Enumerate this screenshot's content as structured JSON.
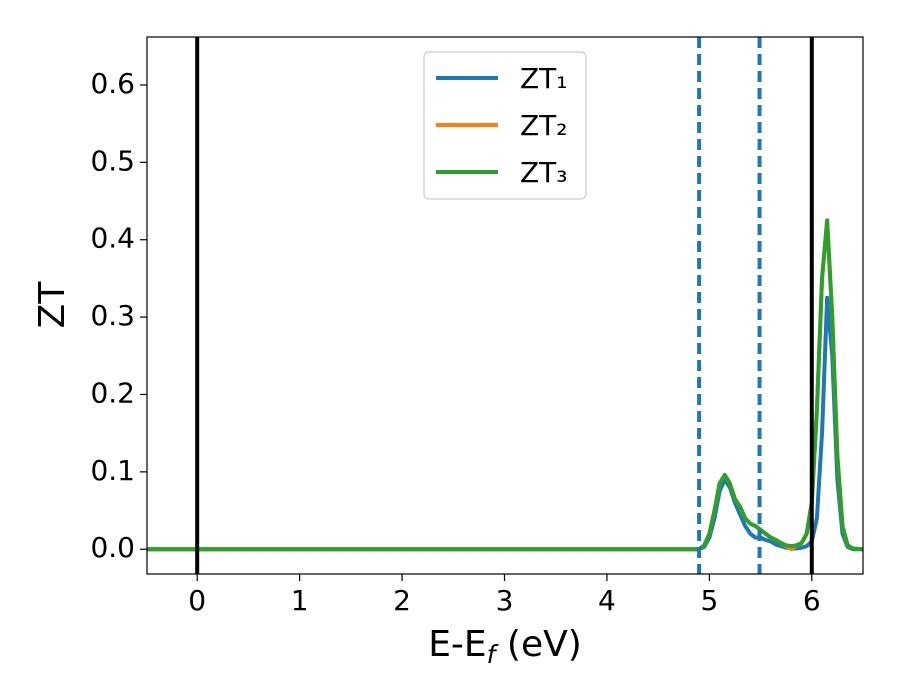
{
  "chart_data": {
    "type": "line",
    "xlabel": [
      "E-E",
      "f",
      " (eV)"
    ],
    "ylabel": "ZT",
    "xlim": [
      -0.49,
      6.5
    ],
    "ylim": [
      -0.032,
      0.662
    ],
    "xticks": [
      0,
      1,
      2,
      3,
      4,
      5,
      6
    ],
    "yticks": [
      {
        "value": 0,
        "label": "0.0"
      },
      0.1,
      0.2,
      0.3,
      0.4,
      0.5,
      0.6
    ],
    "legend": "upper center",
    "x": [
      -0.5,
      4.8,
      4.9,
      4.95,
      5.0,
      5.05,
      5.1,
      5.15,
      5.2,
      5.25,
      5.3,
      5.35,
      5.4,
      5.45,
      5.5,
      5.55,
      5.6,
      5.65,
      5.7,
      5.75,
      5.8,
      5.85,
      5.9,
      5.95,
      6.0,
      6.05,
      6.1,
      6.15,
      6.2,
      6.25,
      6.3,
      6.35,
      6.4,
      6.5
    ],
    "series": [
      {
        "name": "ZT₁",
        "color": "#1f77b4",
        "values": [
          0,
          0,
          0,
          0.003,
          0.015,
          0.04,
          0.075,
          0.09,
          0.08,
          0.06,
          0.045,
          0.03,
          0.02,
          0.015,
          0.015,
          0.012,
          0.01,
          0.006,
          0.004,
          0.002,
          0.001,
          0.001,
          0.002,
          0.004,
          0.01,
          0.04,
          0.15,
          0.325,
          0.25,
          0.09,
          0.02,
          0.003,
          0,
          0
        ]
      },
      {
        "name": "ZT₂",
        "color": "#ff7f0e",
        "values": [
          0,
          0,
          0,
          0.005,
          0.02,
          0.05,
          0.085,
          0.096,
          0.085,
          0.065,
          0.055,
          0.04,
          0.033,
          0.03,
          0.025,
          0.02,
          0.015,
          0.012,
          0.008,
          0.004,
          0,
          0.005,
          0.008,
          0.02,
          0.06,
          0.18,
          0.35,
          0.425,
          0.3,
          0.12,
          0.03,
          0.005,
          0.001,
          0
        ]
      },
      {
        "name": "ZT₃",
        "color": "#2ca02c",
        "values": [
          0,
          0,
          0,
          0.005,
          0.02,
          0.05,
          0.085,
          0.096,
          0.085,
          0.065,
          0.055,
          0.04,
          0.033,
          0.03,
          0.025,
          0.02,
          0.015,
          0.012,
          0.008,
          0.005,
          0.004,
          0.005,
          0.008,
          0.02,
          0.06,
          0.18,
          0.35,
          0.425,
          0.3,
          0.12,
          0.03,
          0.005,
          0.001,
          0
        ]
      }
    ],
    "vlines": [
      {
        "x": 0,
        "color": "#000000",
        "style": "solid"
      },
      {
        "x": 6,
        "color": "#000000",
        "style": "solid"
      },
      {
        "x": 4.9,
        "color": "#1f77b4",
        "style": "dashed"
      },
      {
        "x": 5.49,
        "color": "#1f77b4",
        "style": "dashed"
      }
    ]
  }
}
